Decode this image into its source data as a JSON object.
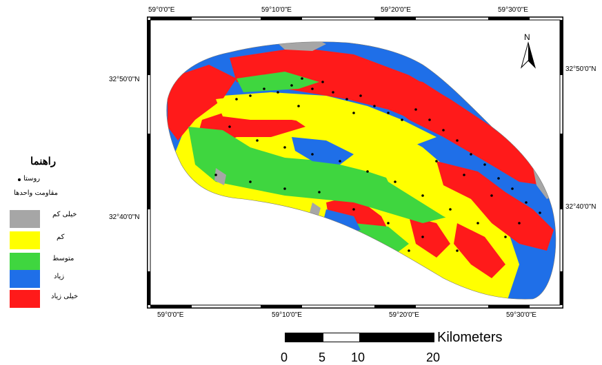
{
  "map": {
    "top_labels": [
      "59°0'0\"E",
      "59°10'0\"E",
      "59°20'0\"E",
      "59°30'0\"E"
    ],
    "bottom_labels": [
      "59°0'0\"E",
      "59°10'0\"E",
      "59°20'0\"E",
      "59°30'0\"E"
    ],
    "left_labels": [
      "32°50'0\"N",
      "32°40'0\"N"
    ],
    "right_labels": [
      "32°50'0\"N",
      "32°40'0\"N"
    ],
    "north_label": "N",
    "colors": {
      "very_low": "#a6a6a6",
      "low": "#ffff00",
      "medium": "#3fd63f",
      "high": "#1f6fe8",
      "very_high": "#ff1a1a"
    }
  },
  "legend": {
    "title": "راهنما",
    "village_label": "روستا",
    "resistance_label": "مقاومت واحدها",
    "classes": [
      {
        "label": "خیلی کم",
        "color": "#a6a6a6"
      },
      {
        "label": "کم",
        "color": "#ffff00"
      },
      {
        "label": "متوسط",
        "color": "#3fd63f"
      },
      {
        "label": "زیاد",
        "color": "#1f6fe8"
      },
      {
        "label": "خیلی زیاد",
        "color": "#ff1a1a"
      }
    ]
  },
  "scale_bar": {
    "unit": "Kilometers",
    "ticks": [
      "0",
      "5",
      "10",
      "20"
    ]
  }
}
